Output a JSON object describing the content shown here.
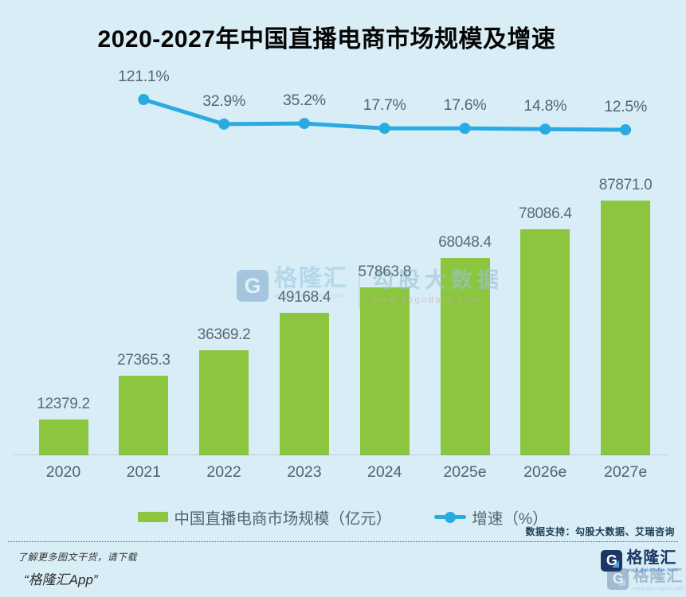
{
  "title": "2020-2027年中国直播电商市场规模及增速",
  "chart_data": {
    "type": "bar",
    "subtype": "bar-line-combo",
    "categories": [
      "2020",
      "2021",
      "2022",
      "2023",
      "2024",
      "2025e",
      "2026e",
      "2027e"
    ],
    "series": [
      {
        "name": "中国直播电商市场规模（亿元）",
        "type": "bar",
        "color": "#8CC63F",
        "values": [
          12379.2,
          27365.3,
          36369.2,
          49168.4,
          57863.8,
          68048.4,
          78086.4,
          87871.0
        ]
      },
      {
        "name": "增速（%）",
        "type": "line",
        "color": "#29ABE2",
        "values": [
          null,
          121.1,
          32.9,
          35.2,
          17.7,
          17.6,
          14.8,
          12.5
        ]
      }
    ],
    "data_labels": {
      "bar": [
        "12379.2",
        "27365.3",
        "36369.2",
        "49168.4",
        "57863.8",
        "68048.4",
        "78086.4",
        "87871.0"
      ],
      "line": [
        "121.1%",
        "32.9%",
        "35.2%",
        "17.7%",
        "17.6%",
        "14.8%",
        "12.5%"
      ]
    },
    "title": "2020-2027年中国直播电商市场规模及增速",
    "xlabel": "",
    "ylabel": "",
    "bar_axis_max": 87871.0,
    "grid": false,
    "legend_position": "bottom"
  },
  "legend": {
    "bar_label": "中国直播电商市场规模（亿元）",
    "line_label": "增速（%）"
  },
  "datasource": "数据支持：勾股大数据、艾瑞咨询",
  "watermark": {
    "logo_letter": "G",
    "brand": "格隆汇",
    "brand_url": "www.gelonghui.com",
    "data_brand": "勾股大数据",
    "data_url": "www.gogudata.com"
  },
  "footer": {
    "line1": "了解更多图文干货，请下载",
    "line2": "“格隆汇App”",
    "logo_letter": "G",
    "logo_text": "格隆汇",
    "logo_url": "www.gelonghui.com"
  },
  "colors": {
    "background": "#D8EDF6",
    "bar": "#8CC63F",
    "line": "#29ABE2",
    "label_text": "#5A6973",
    "title_text": "#050505"
  }
}
